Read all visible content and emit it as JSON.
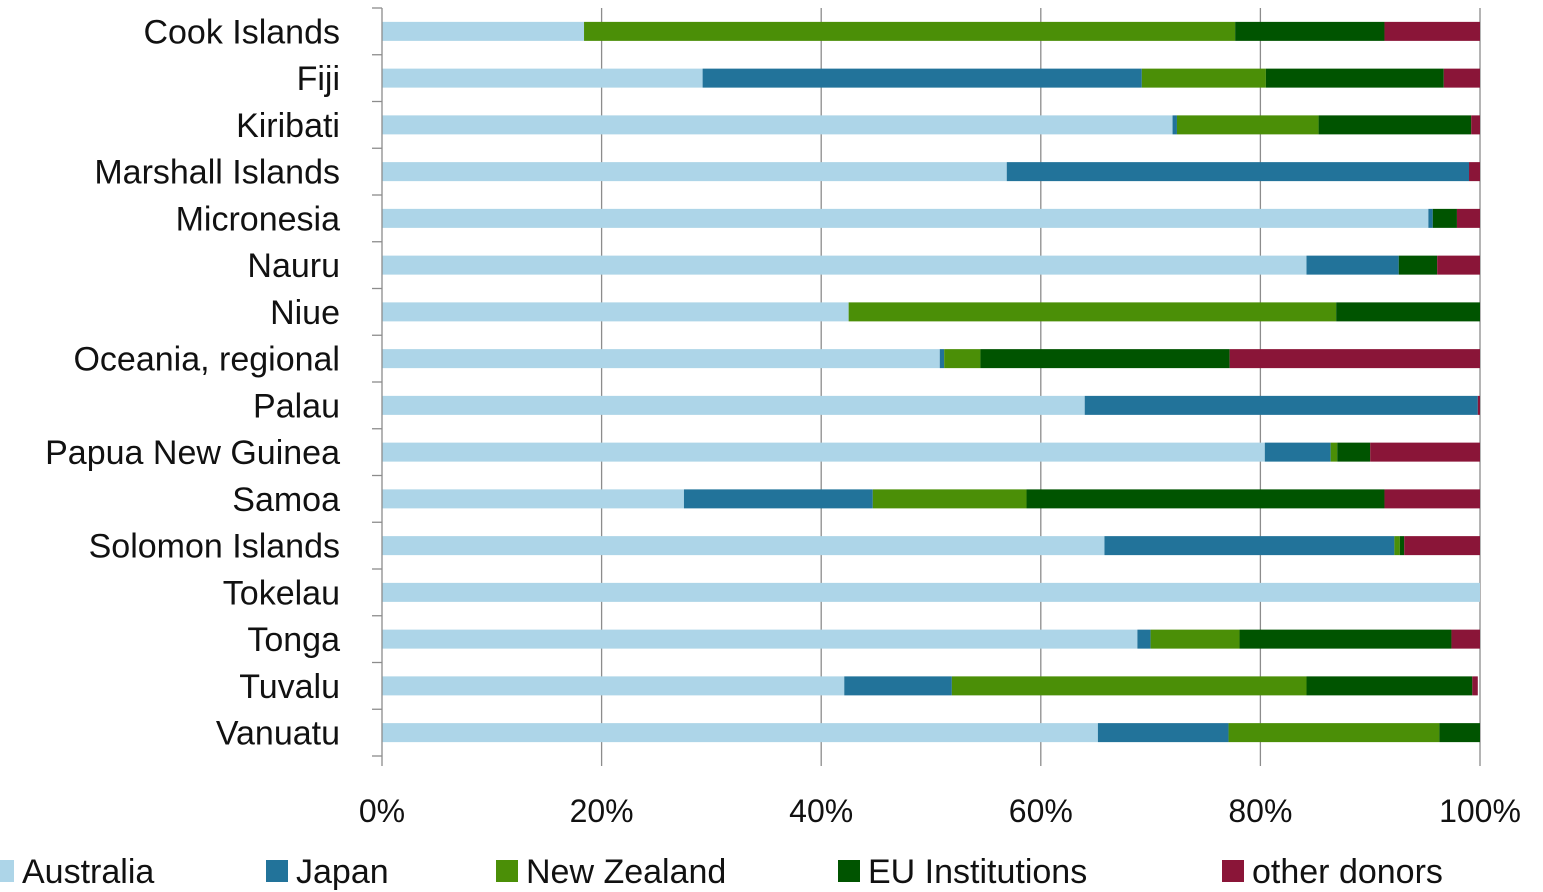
{
  "chart_data": {
    "type": "bar",
    "orientation": "horizontal",
    "stacked": "percent",
    "title": "",
    "xlabel": "",
    "ylabel": "",
    "xlim": [
      0,
      100
    ],
    "x_ticks": [
      "0%",
      "20%",
      "40%",
      "60%",
      "80%",
      "100%"
    ],
    "grid": "vertical",
    "legend_position": "bottom",
    "categories": [
      "Cook Islands",
      "Fiji",
      "Kiribati",
      "Marshall Islands",
      "Micronesia",
      "Nauru",
      "Niue",
      "Oceania, regional",
      "Palau",
      "Papua New Guinea",
      "Samoa",
      "Solomon Islands",
      "Tokelau",
      "Tonga",
      "Tuvalu",
      "Vanuatu"
    ],
    "series": [
      {
        "name": "Australia",
        "color": "#ADD5E8",
        "values": [
          18.4,
          29.2,
          72.0,
          56.9,
          95.3,
          84.2,
          42.5,
          50.8,
          64.0,
          80.4,
          27.5,
          65.8,
          100.0,
          68.8,
          42.1,
          65.2
        ]
      },
      {
        "name": "Japan",
        "color": "#22739A",
        "values": [
          0.0,
          40.0,
          0.4,
          42.1,
          0.4,
          8.4,
          0.0,
          0.4,
          35.8,
          6.0,
          17.2,
          26.4,
          0.0,
          1.2,
          9.8,
          11.9
        ]
      },
      {
        "name": "New Zealand",
        "color": "#4B8F07",
        "values": [
          59.3,
          11.3,
          12.9,
          0.0,
          0.0,
          0.0,
          44.4,
          3.3,
          0.0,
          0.6,
          14.0,
          0.5,
          0.0,
          8.1,
          32.3,
          19.2
        ]
      },
      {
        "name": "EU Institutions",
        "color": "#005400",
        "values": [
          13.6,
          16.2,
          13.9,
          0.0,
          2.2,
          3.5,
          13.1,
          22.7,
          0.0,
          3.0,
          32.6,
          0.4,
          0.0,
          19.3,
          15.1,
          3.7
        ]
      },
      {
        "name": "other donors",
        "color": "#8A1538",
        "values": [
          8.7,
          3.3,
          0.8,
          1.0,
          2.1,
          3.9,
          0.0,
          22.8,
          0.2,
          10.0,
          8.7,
          6.9,
          0.0,
          2.6,
          0.5,
          0.0
        ]
      }
    ]
  }
}
